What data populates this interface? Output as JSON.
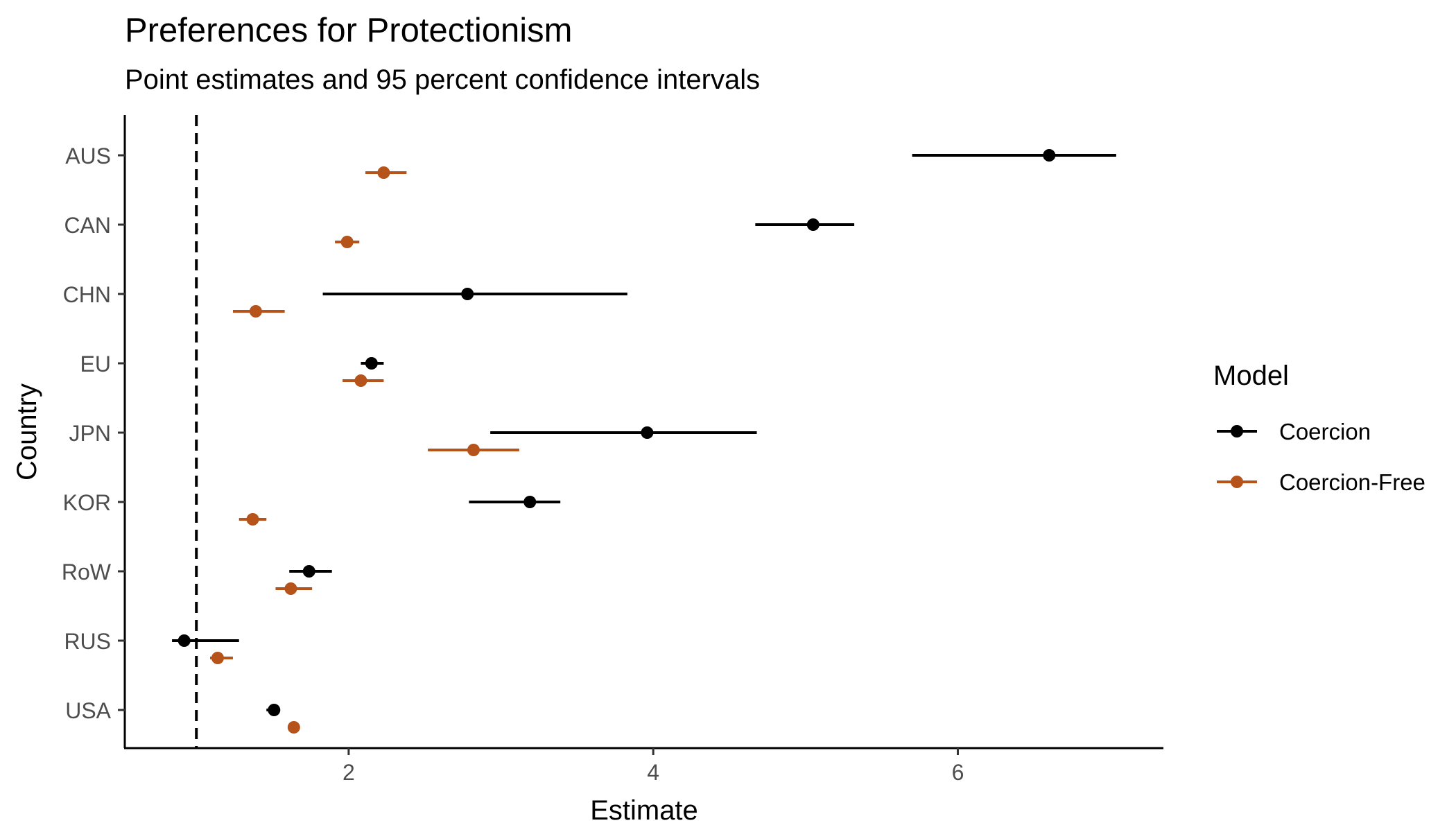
{
  "chart_data": {
    "type": "errorbar-dot",
    "title": "Preferences for Protectionism",
    "subtitle": "Point estimates and 95 percent confidence intervals",
    "xlabel": "Estimate",
    "ylabel": "Country",
    "xlim": [
      0.53,
      7.35
    ],
    "x_ticks": [
      2,
      4,
      6
    ],
    "reference_line": {
      "x": 1,
      "style": "dashed"
    },
    "grid": false,
    "legend": {
      "title": "Model",
      "position": "right"
    },
    "categories": [
      "AUS",
      "CAN",
      "CHN",
      "EU",
      "JPN",
      "KOR",
      "RoW",
      "RUS",
      "USA"
    ],
    "series": [
      {
        "name": "Coercion",
        "color": "#000000",
        "estimate": [
          6.6,
          5.05,
          2.78,
          2.15,
          3.96,
          3.19,
          1.74,
          0.92,
          1.51
        ],
        "lower": [
          5.7,
          4.67,
          1.83,
          2.08,
          2.93,
          2.79,
          1.61,
          0.84,
          1.46
        ],
        "upper": [
          7.04,
          5.32,
          3.83,
          2.23,
          4.68,
          3.39,
          1.89,
          1.28,
          1.55
        ]
      },
      {
        "name": "Coercion-Free",
        "color": "#B5531A",
        "estimate": [
          2.23,
          1.99,
          1.39,
          2.08,
          2.82,
          1.37,
          1.62,
          1.14,
          1.64
        ],
        "lower": [
          2.11,
          1.91,
          1.24,
          1.96,
          2.52,
          1.28,
          1.52,
          1.09,
          1.6
        ],
        "upper": [
          2.38,
          2.07,
          1.58,
          2.23,
          3.12,
          1.46,
          1.76,
          1.24,
          1.68
        ]
      }
    ]
  }
}
